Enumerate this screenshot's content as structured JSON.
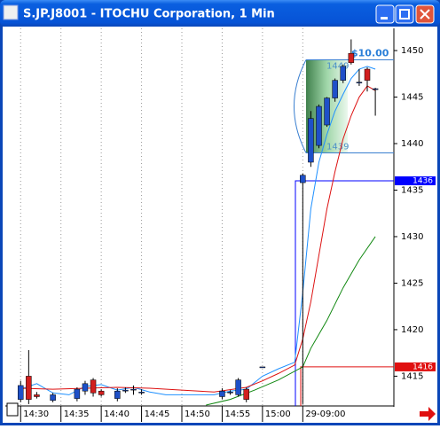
{
  "window": {
    "title": "S.JP.J8001 - ITOCHU Corporation, 1 Min"
  },
  "chart_data": {
    "type": "candlestick",
    "up_color": "#1e50c8",
    "down_color": "#d21e1e",
    "candles": {
      "x": [
        0,
        1,
        2,
        4,
        7,
        8,
        9,
        10,
        12,
        13,
        14,
        15,
        25,
        26,
        27,
        28,
        30,
        35,
        36,
        37,
        38,
        39,
        40,
        41,
        42,
        43,
        44
      ],
      "open": [
        1412.5,
        1415.0,
        1413.0,
        1412.4,
        1412.6,
        1413.4,
        1414.6,
        1413.4,
        1412.6,
        1413.5,
        1413.6,
        1413.3,
        1412.8,
        1413.3,
        1413.0,
        1413.6,
        1416.0,
        1435.8,
        1438.0,
        1439.8,
        1442.0,
        1444.9,
        1446.8,
        1449.7,
        1446.6,
        1448.0,
        1445.9
      ],
      "high": [
        1414.5,
        1417.8,
        1413.3,
        1413.2,
        1413.8,
        1414.5,
        1414.8,
        1413.6,
        1413.7,
        1413.8,
        1414.0,
        1413.6,
        1413.7,
        1413.5,
        1414.8,
        1413.8,
        1416.0,
        1436.8,
        1443.5,
        1444.2,
        1445.0,
        1447.0,
        1448.5,
        1451.2,
        1448.0,
        1448.2,
        1446.0
      ],
      "low": [
        1412.2,
        1412.0,
        1412.6,
        1412.2,
        1412.3,
        1413.0,
        1412.8,
        1412.8,
        1412.3,
        1413.2,
        1413.0,
        1413.0,
        1412.5,
        1413.0,
        1412.8,
        1412.2,
        1416.0,
        1412.0,
        1437.5,
        1439.5,
        1441.8,
        1444.5,
        1446.5,
        1448.5,
        1446.2,
        1445.6,
        1443.0
      ],
      "close": [
        1414.0,
        1412.5,
        1412.8,
        1413.0,
        1413.6,
        1414.2,
        1413.2,
        1413.0,
        1413.4,
        1413.5,
        1413.6,
        1413.3,
        1413.4,
        1413.3,
        1414.6,
        1412.5,
        1416.0,
        1436.6,
        1442.7,
        1444.0,
        1444.9,
        1446.8,
        1448.3,
        1448.7,
        1446.6,
        1446.8,
        1445.9
      ]
    },
    "lines": [
      {
        "color": "#1e90ff",
        "x": [
          0,
          2,
          4,
          6,
          8,
          10,
          12,
          14,
          16,
          18,
          20,
          22,
          24,
          26,
          28,
          30,
          32,
          34,
          35,
          36,
          37,
          38,
          39,
          40,
          41,
          42,
          43,
          44
        ],
        "values": [
          1413.6,
          1414.2,
          1413.2,
          1413.0,
          1413.9,
          1414.1,
          1413.5,
          1413.8,
          1413.3,
          1413.0,
          1413.0,
          1413.0,
          1413.0,
          1413.4,
          1413.6,
          1415.0,
          1415.8,
          1416.5,
          1424,
          1433,
          1438,
          1441,
          1443.5,
          1445.3,
          1447,
          1448,
          1448.3,
          1448
        ]
      },
      {
        "color": "#dd1111",
        "x": [
          0,
          4,
          8,
          12,
          16,
          20,
          24,
          28,
          30,
          32,
          34,
          35,
          36,
          37,
          38,
          39,
          40,
          41,
          42,
          43,
          44
        ],
        "values": [
          1413.7,
          1413.6,
          1413.7,
          1413.8,
          1413.7,
          1413.5,
          1413.3,
          1413.8,
          1414.5,
          1415.3,
          1416.2,
          1419,
          1423,
          1428,
          1433,
          1437,
          1440.5,
          1443,
          1445,
          1446.2,
          1445.7
        ]
      },
      {
        "color": "#118811",
        "x": [
          23,
          26,
          29,
          32,
          35,
          36,
          38,
          40,
          42,
          44
        ],
        "values": [
          1411.9,
          1412.5,
          1413.5,
          1414.6,
          1416,
          1418,
          1421,
          1424.5,
          1427.5,
          1430
        ]
      }
    ],
    "price_lines": [
      {
        "value": 1436,
        "color": "#0000ff"
      },
      {
        "value": 1416,
        "color": "#e01010"
      }
    ],
    "measure": {
      "high": 1449,
      "low": 1439,
      "label": "$10.00"
    },
    "xlim": [
      -1.9,
      46.3
    ],
    "ylim": [
      1411.8,
      1452.1
    ],
    "xticks": [
      {
        "value": 0,
        "label": "14:30"
      },
      {
        "value": 5,
        "label": "14:35"
      },
      {
        "value": 10,
        "label": "14:40"
      },
      {
        "value": 15,
        "label": "14:45"
      },
      {
        "value": 20,
        "label": "14:50"
      },
      {
        "value": 25,
        "label": "14:55"
      },
      {
        "value": 30,
        "label": "15:00"
      },
      {
        "value": 35,
        "label": "29-09:00"
      }
    ],
    "yticks": [
      1415,
      1420,
      1425,
      1430,
      1435,
      1440,
      1445,
      1450
    ],
    "grid": true
  }
}
